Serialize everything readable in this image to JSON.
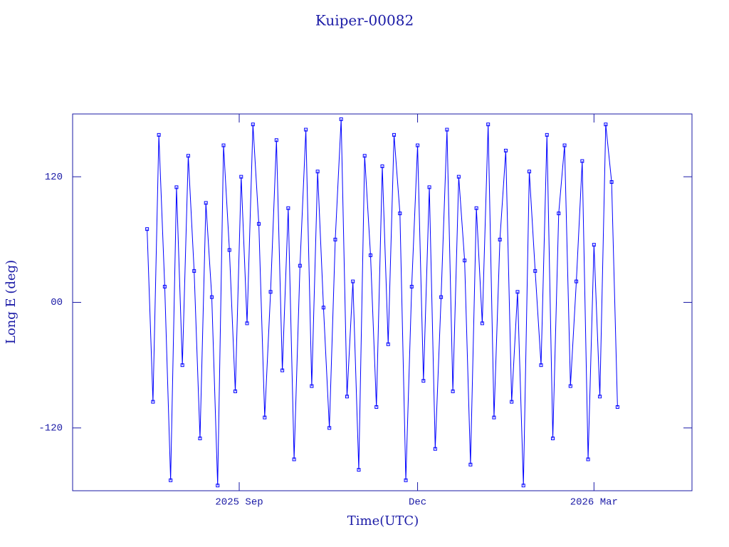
{
  "chart_data": {
    "type": "line",
    "title": "Kuiper-00082",
    "x_label": "Time(UTC)",
    "y_label": "Long E (deg)",
    "x": [
      -47,
      -44,
      -41,
      -38,
      -35,
      -32,
      -29,
      -26,
      -23,
      -20,
      -17,
      -14,
      -11,
      -8,
      -5,
      -2,
      1,
      4,
      7,
      10,
      13,
      16,
      19,
      22,
      25,
      28,
      31,
      34,
      37,
      40,
      43,
      46,
      49,
      52,
      55,
      58,
      61,
      64,
      67,
      70,
      73,
      76,
      79,
      82,
      85,
      88,
      91,
      94,
      97,
      100,
      103,
      106,
      109,
      112,
      115,
      118,
      121,
      124,
      127,
      130,
      133,
      136,
      139,
      142,
      145,
      148,
      151,
      154,
      157,
      160,
      163,
      166,
      169,
      172,
      175,
      178,
      181,
      184,
      187,
      190,
      193
    ],
    "series": [
      {
        "color": "#0000ff",
        "values": [
          70,
          -95,
          160,
          15,
          -170,
          110,
          -60,
          140,
          30,
          -130,
          95,
          5,
          -175,
          150,
          50,
          -85,
          120,
          -20,
          170,
          75,
          -110,
          10,
          155,
          -65,
          90,
          -150,
          35,
          165,
          -80,
          125,
          -5,
          -120,
          60,
          175,
          -90,
          20,
          -160,
          140,
          45,
          -100,
          130,
          -40,
          160,
          85,
          -170,
          15,
          150,
          -75,
          110,
          -140,
          5,
          165,
          -85,
          120,
          40,
          -155,
          90,
          -20,
          170,
          -110,
          60,
          145,
          -95,
          10,
          -175,
          125,
          30,
          -60,
          160,
          -130,
          85,
          150,
          -80,
          20,
          135,
          -150,
          55,
          -90,
          170,
          115,
          -100
        ]
      }
    ],
    "xlim": [
      -85,
      231
    ],
    "xticks": [
      {
        "value": 0,
        "label": "2025 Sep"
      },
      {
        "value": 91,
        "label": "Dec"
      },
      {
        "value": 181,
        "label": "2026 Mar"
      }
    ],
    "ylim": [
      -180,
      180
    ],
    "yticks": [
      -120,
      {
        "value": 0,
        "label": "00"
      },
      120
    ]
  }
}
